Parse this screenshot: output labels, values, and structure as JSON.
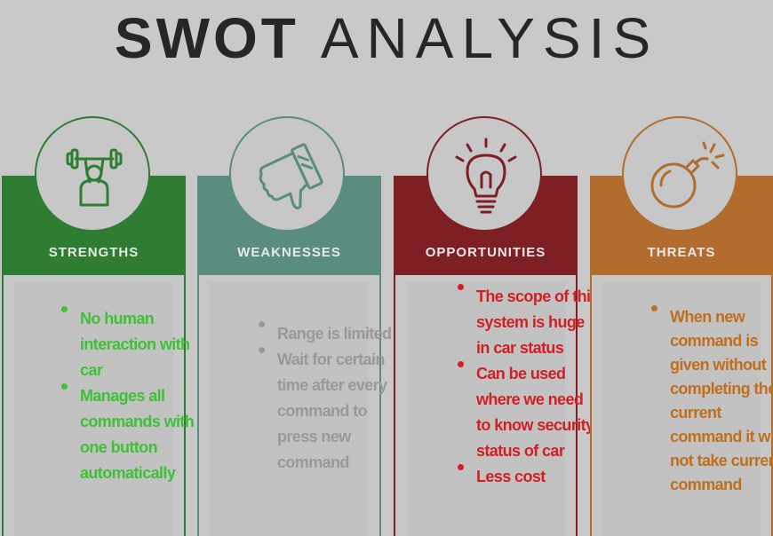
{
  "title": {
    "bold": "SWOT",
    "light": "ANALYSIS"
  },
  "columns": [
    {
      "label": "STRENGTHS",
      "color": "#2e7d32",
      "text_color": "#3ec137",
      "icon": "weightlifter-icon",
      "items": [
        "No human interaction with car",
        "Manages all commands with one button automatically"
      ]
    },
    {
      "label": "WEAKNESSES",
      "color": "#5a8d80",
      "text_color": "#999999",
      "icon": "thumbs-down-icon",
      "items": [
        "Range is limited",
        "Wait for certain time after every command to press new command"
      ]
    },
    {
      "label": "OPPORTUNITIES",
      "color": "#7e1f24",
      "text_color": "#d21f24",
      "icon": "lightbulb-icon",
      "items": [
        "The scope of this system is huge in car status",
        "Can be used where we need to know security status of car",
        "Less cost"
      ]
    },
    {
      "label": "THREATS",
      "color": "#b26d2e",
      "text_color": "#c06f1c",
      "icon": "bomb-icon",
      "items": [
        "When new command is given without completing the current command it will not take current command"
      ]
    }
  ]
}
